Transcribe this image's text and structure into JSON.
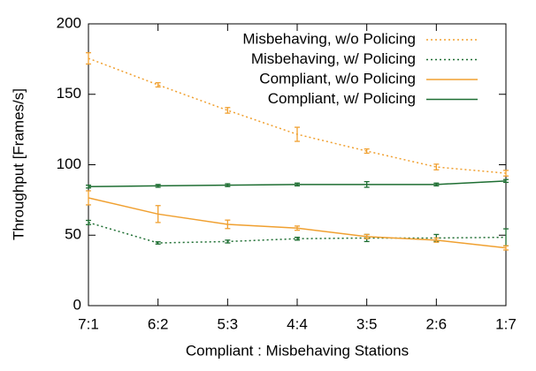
{
  "chart_data": {
    "type": "line",
    "x_label": "Compliant : Misbehaving Stations",
    "y_label": "Throughput [Frames/s]",
    "categories": [
      "7:1",
      "6:2",
      "5:3",
      "4:4",
      "3:5",
      "2:6",
      "1:7"
    ],
    "ylim": [
      0,
      200
    ],
    "yticks": [
      0,
      50,
      100,
      150,
      200
    ],
    "legend": "top-right",
    "series": [
      {
        "name": "Misbehaving, w/o Policing",
        "color": "#f0a030",
        "dash": "dotted",
        "values": [
          175.5,
          156.7,
          138.6,
          121.6,
          109.7,
          98.4,
          94
        ],
        "errors": [
          4,
          1.5,
          2,
          5,
          1.5,
          2,
          2
        ]
      },
      {
        "name": "Misbehaving, w/ Policing",
        "color": "#1e6e32",
        "dash": "dotted",
        "values": [
          59,
          44.5,
          45.5,
          47.5,
          48,
          48,
          48.5
        ],
        "errors": [
          1.5,
          0.8,
          1,
          1,
          2.5,
          2.5,
          6
        ]
      },
      {
        "name": "Compliant, w/o Policing",
        "color": "#f0a030",
        "dash": "solid",
        "values": [
          76.5,
          65,
          57.7,
          55,
          49,
          46.5,
          41
        ],
        "errors": [
          5,
          6,
          3,
          1.5,
          1.5,
          1.5,
          1.5
        ]
      },
      {
        "name": "Compliant, w/ Policing",
        "color": "#1e6e32",
        "dash": "solid",
        "values": [
          84.5,
          85,
          85.5,
          86,
          86,
          86,
          88.5
        ],
        "errors": [
          1,
          1,
          1,
          1,
          2,
          1,
          1
        ]
      }
    ]
  }
}
